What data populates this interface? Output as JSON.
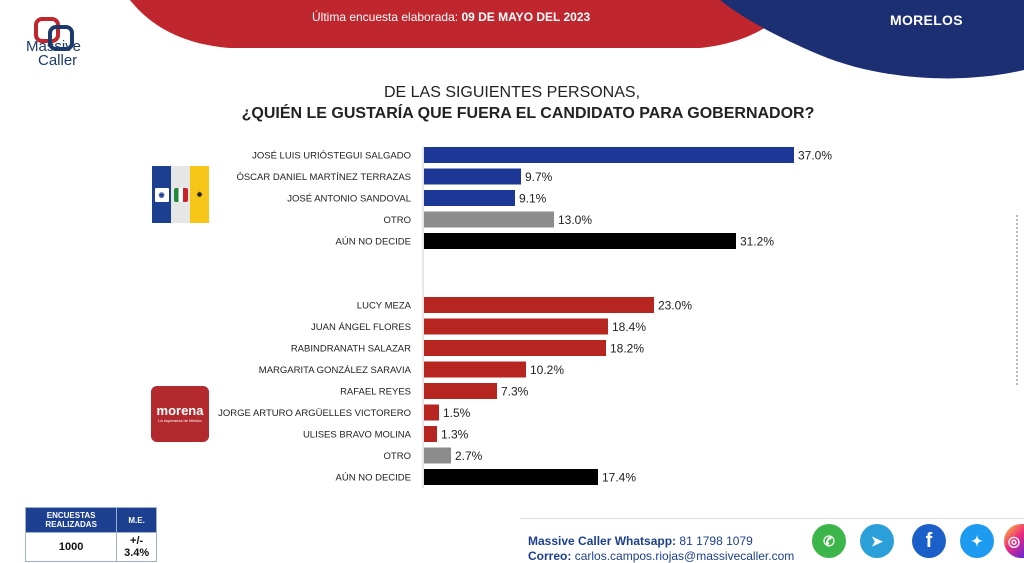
{
  "header": {
    "logo_line1": "Massive",
    "logo_line2": "Caller",
    "date_prefix": "Última encuesta elaborada:",
    "date_value": "09 DE MAYO DEL 2023",
    "state": "MORELOS"
  },
  "question": {
    "line1": "DE LAS SIGUIENTES PERSONAS,",
    "line2": "¿QUIÉN LE GUSTARÍA QUE FUERA EL CANDIDATO PARA GOBERNADOR?"
  },
  "party_logos": {
    "morena": "morena",
    "morena_sub": "La esperanza de México"
  },
  "colors": {
    "header_red": "#c0262d",
    "header_blue": "#1c2f73",
    "bar_blue": "#1c3796",
    "bar_red": "#b72520",
    "bar_gray": "#8c8c8c",
    "bar_black": "#000000"
  },
  "chart_data": [
    {
      "type": "bar",
      "orientation": "horizontal",
      "group": "PAN-PRI-PRD",
      "categories": [
        "JOSÉ LUIS URIÓSTEGUI SALGADO",
        "ÓSCAR DANIEL MARTÍNEZ TERRAZAS",
        "JOSÉ ANTONIO SANDOVAL",
        "OTRO",
        "AÚN NO DECIDE"
      ],
      "values": [
        37.0,
        9.7,
        9.1,
        13.0,
        31.2
      ],
      "value_labels": [
        "37.0%",
        "9.7%",
        "9.1%",
        "13.0%",
        "31.2%"
      ],
      "bar_colors": [
        "blue",
        "blue",
        "blue",
        "gray",
        "black"
      ],
      "xlim": [
        0,
        40
      ]
    },
    {
      "type": "bar",
      "orientation": "horizontal",
      "group": "morena",
      "categories": [
        "LUCY MEZA",
        "JUAN ÁNGEL FLORES",
        "RABINDRANATH SALAZAR",
        "MARGARITA GONZÁLEZ SARAVIA",
        "RAFAEL REYES",
        "JORGE ARTURO ARGÜELLES VICTORERO",
        "ULISES BRAVO MOLINA",
        "OTRO",
        "AÚN NO DECIDE"
      ],
      "values": [
        23.0,
        18.4,
        18.2,
        10.2,
        7.3,
        1.5,
        1.3,
        2.7,
        17.4
      ],
      "value_labels": [
        "23.0%",
        "18.4%",
        "18.2%",
        "10.2%",
        "7.3%",
        "1.5%",
        "1.3%",
        "2.7%",
        "17.4%"
      ],
      "bar_colors": [
        "red",
        "red",
        "red",
        "red",
        "red",
        "red",
        "red",
        "gray",
        "black"
      ],
      "xlim": [
        0,
        40
      ]
    }
  ],
  "stats": {
    "col1_header": "ENCUESTAS REALIZADAS",
    "col2_header": "M.E.",
    "col1_value": "1000",
    "col2_value": "+/- 3.4%"
  },
  "footer": {
    "whatsapp_label": "Massive Caller Whatsapp:",
    "whatsapp_number": "81 1798 1079",
    "email_label": "Correo:",
    "email_value": "carlos.campos.riojas@massivecaller.com"
  },
  "social_icons": [
    "whatsapp-icon",
    "telegram-icon",
    "facebook-icon",
    "twitter-icon",
    "instagram-icon"
  ]
}
